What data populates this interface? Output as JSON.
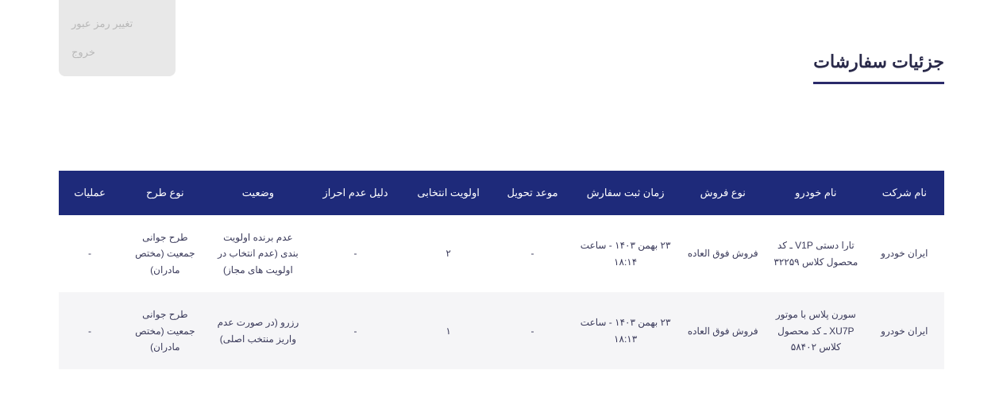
{
  "sidebar": {
    "items": [
      {
        "label": "تغییر رمز عبور"
      },
      {
        "label": "خروج"
      }
    ]
  },
  "page": {
    "title": "جزئیات سفارشات"
  },
  "table": {
    "headers": {
      "company": "نام شرکت",
      "car": "نام خودرو",
      "saleType": "نوع فروش",
      "orderTime": "زمان ثبت سفارش",
      "delivery": "موعد تحویل",
      "priority": "اولویت انتخابی",
      "reason": "دلیل عدم احراز",
      "status": "وضعیت",
      "planType": "نوع طرح",
      "actions": "عملیات"
    },
    "rows": [
      {
        "company": "ایران خودرو",
        "car": "تارا دستی V1P ـ کد محصول کلاس ۳۲۲۵۹",
        "saleType": "فروش فوق العاده",
        "orderTime": "۲۳ بهمن ۱۴۰۳ - ساعت ۱۸:۱۴",
        "delivery": "-",
        "priority": "۲",
        "reason": "-",
        "status": "عدم برنده اولویت بندی (عدم انتخاب در اولویت های مجاز)",
        "planType": "طرح جوانی جمعیت (مختص مادران)",
        "actions": "-"
      },
      {
        "company": "ایران خودرو",
        "car": "سورن پلاس با موتور XU7P ـ کد محصول کلاس ۵۸۴۰۲",
        "saleType": "فروش فوق العاده",
        "orderTime": "۲۳ بهمن ۱۴۰۳ - ساعت ۱۸:۱۳",
        "delivery": "-",
        "priority": "۱",
        "reason": "-",
        "status": "رزرو (در صورت عدم واریز منتخب اصلی)",
        "planType": "طرح جوانی جمعیت (مختص مادران)",
        "actions": "-"
      }
    ]
  }
}
